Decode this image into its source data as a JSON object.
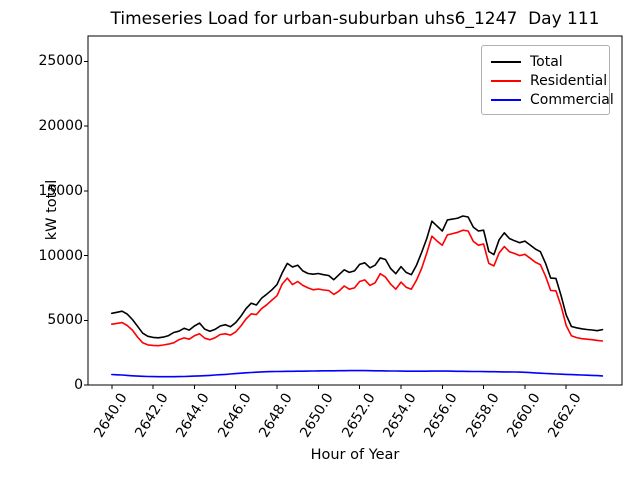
{
  "title": "Timeseries Load for urban-suburban uhs6_1247  Day 111",
  "chart_data": {
    "type": "line",
    "title": "Timeseries Load for urban-suburban uhs6_1247  Day 111",
    "xlabel": "Hour of Year",
    "ylabel": "kW total",
    "grid": false,
    "legend_position": "upper right",
    "xlim": [
      2638.85,
      2664.7
    ],
    "ylim": [
      0,
      26970
    ],
    "x_start": 2640.0,
    "x_step": 0.25,
    "x_ticks": [
      {
        "value": 2640,
        "label": "2640.0"
      },
      {
        "value": 2642,
        "label": "2642.0"
      },
      {
        "value": 2644,
        "label": "2644.0"
      },
      {
        "value": 2646,
        "label": "2646.0"
      },
      {
        "value": 2648,
        "label": "2648.0"
      },
      {
        "value": 2650,
        "label": "2650.0"
      },
      {
        "value": 2652,
        "label": "2652.0"
      },
      {
        "value": 2654,
        "label": "2654.0"
      },
      {
        "value": 2656,
        "label": "2656.0"
      },
      {
        "value": 2658,
        "label": "2658.0"
      },
      {
        "value": 2660,
        "label": "2660.0"
      },
      {
        "value": 2662,
        "label": "2662.0"
      }
    ],
    "y_ticks": [
      {
        "value": 0,
        "label": "0"
      },
      {
        "value": 5000,
        "label": "5000"
      },
      {
        "value": 10000,
        "label": "10000"
      },
      {
        "value": 15000,
        "label": "15000"
      },
      {
        "value": 20000,
        "label": "20000"
      },
      {
        "value": 25000,
        "label": "25000"
      }
    ],
    "series": [
      {
        "name": "Total",
        "color": "#000000",
        "values": [
          5540,
          5620,
          5700,
          5480,
          5060,
          4540,
          4000,
          3760,
          3680,
          3650,
          3700,
          3820,
          4060,
          4160,
          4380,
          4240,
          4560,
          4780,
          4320,
          4160,
          4300,
          4560,
          4660,
          4500,
          4820,
          5320,
          5900,
          6320,
          6180,
          6700,
          7020,
          7360,
          7760,
          8660,
          9400,
          9120,
          9260,
          8820,
          8620,
          8560,
          8620,
          8520,
          8460,
          8140,
          8520,
          8900,
          8700,
          8820,
          9320,
          9440,
          9060,
          9260,
          9820,
          9700,
          9000,
          8600,
          9150,
          8700,
          8520,
          9260,
          10240,
          11320,
          12660,
          12280,
          11900,
          12760,
          12820,
          12900,
          13060,
          12980,
          12200,
          11900,
          11960,
          10320,
          10080,
          11220,
          11760,
          11320,
          11140,
          11000,
          11120,
          10820,
          10520,
          10300,
          9400,
          8260,
          8240,
          6900,
          5420,
          4520,
          4420,
          4340,
          4290,
          4250,
          4200,
          4280
        ]
      },
      {
        "name": "Residential",
        "color": "#ff0000",
        "values": [
          4700,
          4760,
          4820,
          4600,
          4240,
          3700,
          3260,
          3100,
          3060,
          3040,
          3090,
          3160,
          3260,
          3500,
          3640,
          3540,
          3800,
          3960,
          3620,
          3500,
          3650,
          3900,
          3960,
          3860,
          4100,
          4560,
          5100,
          5500,
          5440,
          5900,
          6200,
          6560,
          6900,
          7800,
          8260,
          7760,
          8000,
          7700,
          7500,
          7360,
          7420,
          7340,
          7300,
          7000,
          7260,
          7650,
          7400,
          7500,
          8000,
          8120,
          7700,
          7900,
          8600,
          8340,
          7800,
          7400,
          7950,
          7560,
          7400,
          8100,
          9000,
          10200,
          11500,
          11120,
          10800,
          11600,
          11700,
          11800,
          11960,
          11900,
          11100,
          10800,
          10900,
          9400,
          9200,
          10200,
          10700,
          10300,
          10160,
          10000,
          10100,
          9800,
          9500,
          9300,
          8400,
          7300,
          7280,
          6100,
          4600,
          3800,
          3660,
          3580,
          3540,
          3500,
          3450,
          3400
        ]
      },
      {
        "name": "Commercial",
        "color": "#0000ff",
        "values": [
          810,
          790,
          770,
          740,
          710,
          690,
          670,
          660,
          650,
          645,
          640,
          640,
          645,
          650,
          660,
          675,
          690,
          705,
          720,
          745,
          770,
          795,
          820,
          850,
          880,
          910,
          940,
          965,
          990,
          1010,
          1025,
          1035,
          1045,
          1050,
          1055,
          1060,
          1065,
          1070,
          1075,
          1080,
          1090,
          1095,
          1100,
          1100,
          1105,
          1105,
          1110,
          1110,
          1115,
          1110,
          1105,
          1100,
          1100,
          1090,
          1085,
          1080,
          1075,
          1070,
          1070,
          1065,
          1065,
          1070,
          1075,
          1075,
          1080,
          1075,
          1070,
          1060,
          1055,
          1050,
          1045,
          1040,
          1035,
          1030,
          1025,
          1020,
          1015,
          1010,
          1005,
          1000,
          980,
          960,
          935,
          910,
          890,
          870,
          850,
          835,
          820,
          805,
          790,
          775,
          760,
          745,
          725,
          700
        ]
      }
    ]
  }
}
